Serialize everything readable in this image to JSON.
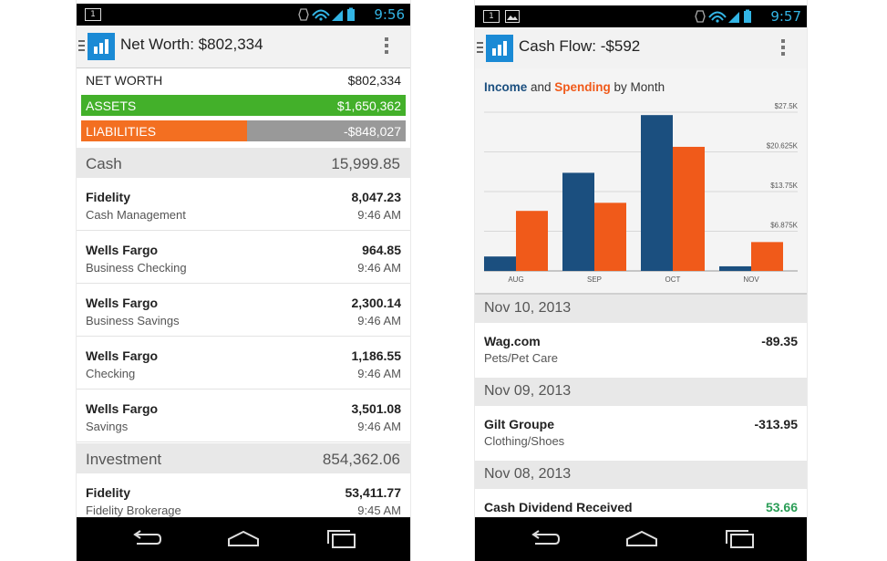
{
  "left": {
    "status_time": "9:56",
    "notif_icon_text": "1",
    "title": "Net Worth: $802,334",
    "net_worth": {
      "label": "NET WORTH",
      "value": "$802,334"
    },
    "assets": {
      "label": "ASSETS",
      "value": "$1,650,362"
    },
    "liabilities": {
      "label": "LIABILITIES",
      "value": "-$848,027",
      "fraction": 0.51
    },
    "sections": [
      {
        "label": "Cash",
        "value": "15,999.85"
      },
      {
        "label": "Investment",
        "value": "854,362.06"
      }
    ],
    "accounts": [
      {
        "name": "Fidelity",
        "type": "Cash Management",
        "amount": "8,047.23",
        "time": "9:46 AM"
      },
      {
        "name": "Wells Fargo",
        "type": "Business Checking",
        "amount": "964.85",
        "time": "9:46 AM"
      },
      {
        "name": "Wells Fargo",
        "type": "Business Savings",
        "amount": "2,300.14",
        "time": "9:46 AM"
      },
      {
        "name": "Wells Fargo",
        "type": "Checking",
        "amount": "1,186.55",
        "time": "9:46 AM"
      },
      {
        "name": "Wells Fargo",
        "type": "Savings",
        "amount": "3,501.08",
        "time": "9:46 AM"
      },
      {
        "name": "Fidelity",
        "type": "Fidelity Brokerage",
        "amount": "53,411.77",
        "time": "9:45 AM"
      }
    ]
  },
  "right": {
    "status_time": "9:57",
    "notif_icon_text": "1",
    "title": "Cash Flow: -$592",
    "chart_title": {
      "income": "Income",
      "and": " and ",
      "spending": "Spending",
      "suffix": " by Month"
    },
    "chart_data": {
      "type": "bar",
      "categories": [
        "AUG",
        "SEP",
        "OCT",
        "NOV"
      ],
      "series": [
        {
          "name": "Income",
          "values": [
            2500,
            17000,
            27000,
            800
          ],
          "color": "#1b4f7f"
        },
        {
          "name": "Spending",
          "values": [
            10400,
            11800,
            21500,
            5000
          ],
          "color": "#f05a1a"
        }
      ],
      "yticks": [
        "$6.875K",
        "$13.75K",
        "$20.625K",
        "$27.5K"
      ],
      "ytick_values": [
        6875,
        13750,
        20625,
        27500
      ],
      "ylim": [
        0,
        27500
      ],
      "grid": true
    },
    "transactions": [
      {
        "date": "Nov 10, 2013",
        "name": "Wag.com",
        "category": "Pets/Pet Care",
        "amount": "-89.35"
      },
      {
        "date": "Nov 09, 2013",
        "name": "Gilt Groupe",
        "category": "Clothing/Shoes",
        "amount": "-313.95"
      },
      {
        "date": "Nov 08, 2013",
        "name": "Cash Dividend Received",
        "category": "",
        "amount": "53.66"
      }
    ]
  }
}
